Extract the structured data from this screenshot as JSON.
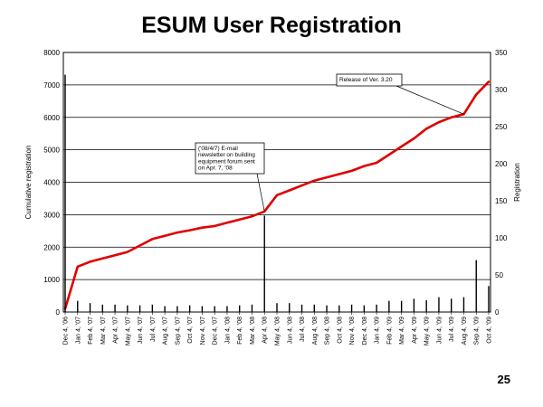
{
  "slide": {
    "title": "ESUM User Registration",
    "page_number": "25"
  },
  "chart_data": {
    "type": "line",
    "title": "ESUM User Registration",
    "ylabel_left": "Cumulative registration",
    "ylabel_right": "Registration",
    "ylim_left": [
      0,
      8000
    ],
    "ylim_right": [
      0,
      350
    ],
    "yticks_left": [
      "0",
      "1000",
      "2000",
      "3000",
      "4000",
      "5000",
      "6000",
      "7000",
      "8000"
    ],
    "yticks_right": [
      "0",
      "50",
      "100",
      "150",
      "200",
      "250",
      "300",
      "350"
    ],
    "grid": true,
    "x_tick_labels": [
      "Dec 4, '06",
      "Jan 4, '07",
      "Feb 4, '07",
      "Mar 4, '07",
      "Apr 4, '07",
      "May 4, '07",
      "Jun 4, '07",
      "Jul 4, '07",
      "Aug 4, '07",
      "Sep 4, '07",
      "Oct 4, '07",
      "Nov 4, '07",
      "Dec 4, '07",
      "Jan 4, '08",
      "Feb 4, '08",
      "Mar 4, '08",
      "Apr 4, '08",
      "May 4, '08",
      "Jun 4, '08",
      "Jul 4, '08",
      "Aug 4, '08",
      "Sep 4, '08",
      "Oct 4, '08",
      "Nov 4, '08",
      "Dec 4, '08",
      "Jan 4, '09",
      "Feb 4, '09",
      "Mar 4, '09",
      "Apr 4, '09",
      "May 4, '09",
      "Jun 4, '09",
      "Jul 4, '09",
      "Aug 4, '09",
      "Sep 4, '09",
      "Oct 4, '09"
    ],
    "series": [
      {
        "axis": "left",
        "color": "#e00000",
        "x": [
          "Dec 4, '06",
          "Jan 4, '07",
          "Feb 4, '07",
          "Mar 4, '07",
          "Apr 4, '07",
          "May 4, '07",
          "Jun 4, '07",
          "Jul 4, '07",
          "Aug 4, '07",
          "Sep 4, '07",
          "Oct 4, '07",
          "Nov 4, '07",
          "Dec 4, '07",
          "Jan 4, '08",
          "Feb 4, '08",
          "Mar 4, '08",
          "Apr 4, '08",
          "May 4, '08",
          "Jun 4, '08",
          "Jul 4, '08",
          "Aug 4, '08",
          "Sep 4, '08",
          "Oct 4, '08",
          "Nov 4, '08",
          "Dec 4, '08",
          "Jan 4, '09",
          "Feb 4, '09",
          "Mar 4, '09",
          "Apr 4, '09",
          "May 4, '09",
          "Jun 4, '09",
          "Jul 4, '09",
          "Aug 4, '09",
          "Sep 4, '09",
          "Oct 4, '09"
        ],
        "values": [
          100,
          1400,
          1550,
          1650,
          1750,
          1850,
          2050,
          2250,
          2350,
          2450,
          2520,
          2600,
          2650,
          2750,
          2850,
          2950,
          3100,
          3600,
          3750,
          3900,
          4050,
          4150,
          4250,
          4350,
          4500,
          4600,
          4850,
          5100,
          5350,
          5650,
          5850,
          6000,
          6100,
          6700,
          7100
        ]
      },
      {
        "axis": "right",
        "color": "#000000",
        "x": [
          "Dec 4, '06",
          "Jan 4, '07",
          "Feb 4, '07",
          "Mar 4, '07",
          "Apr 4, '07",
          "May 4, '07",
          "Jun 4, '07",
          "Jul 4, '07",
          "Aug 4, '07",
          "Sep 4, '07",
          "Oct 4, '07",
          "Nov 4, '07",
          "Dec 4, '07",
          "Jan 4, '08",
          "Feb 4, '08",
          "Mar 4, '08",
          "Apr 4, '08",
          "May 4, '08",
          "Jun 4, '08",
          "Jul 4, '08",
          "Aug 4, '08",
          "Sep 4, '08",
          "Oct 4, '08",
          "Nov 4, '08",
          "Dec 4, '08",
          "Jan 4, '09",
          "Feb 4, '09",
          "Mar 4, '09",
          "Apr 4, '09",
          "May 4, '09",
          "Jun 4, '09",
          "Jul 4, '09",
          "Aug 4, '09",
          "Sep 4, '09",
          "Oct 4, '09"
        ],
        "values": [
          320,
          15,
          12,
          10,
          10,
          9,
          9,
          10,
          8,
          8,
          9,
          8,
          8,
          8,
          9,
          10,
          130,
          12,
          12,
          10,
          10,
          9,
          9,
          10,
          9,
          10,
          15,
          15,
          18,
          16,
          20,
          18,
          20,
          70,
          35
        ]
      }
    ],
    "annotations": [
      {
        "date": "Apr 4, '08",
        "lines": [
          "('08/4/7) E-mail",
          "newsletter on building",
          "equipment forum sent",
          "on Apr. 7, '08"
        ]
      },
      {
        "date": "Aug 4, '09",
        "lines": [
          "Release of Ver. 3.20"
        ]
      }
    ]
  }
}
